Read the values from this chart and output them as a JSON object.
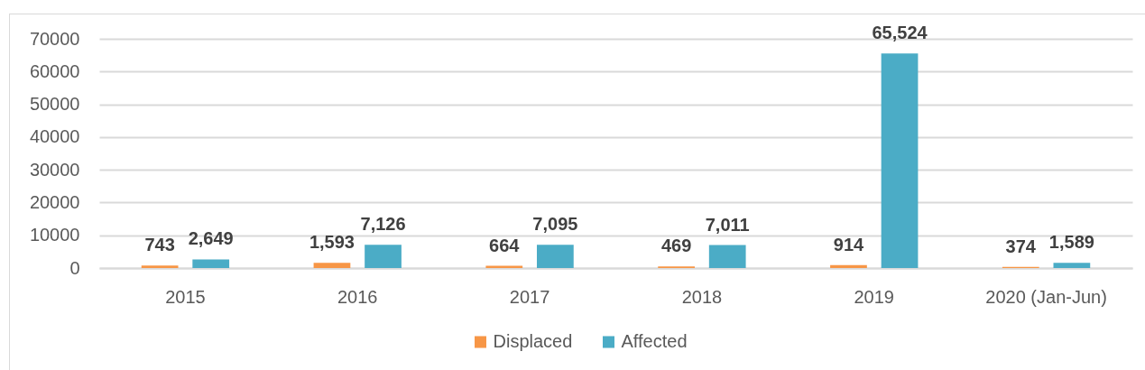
{
  "chart_data": {
    "type": "bar",
    "categories": [
      "2015",
      "2016",
      "2017",
      "2018",
      "2019",
      "2020 (Jan-Jun)"
    ],
    "series": [
      {
        "name": "Displaced",
        "color": "#f79646",
        "values": [
          743,
          1593,
          664,
          469,
          914,
          374
        ],
        "value_labels": [
          "743",
          "1,593",
          "664",
          "469",
          "914",
          "374"
        ]
      },
      {
        "name": "Affected",
        "color": "#4bacc6",
        "values": [
          2649,
          7126,
          7095,
          7011,
          65524,
          1589
        ],
        "value_labels": [
          "2,649",
          "7,126",
          "7,095",
          "7,011",
          "65,524",
          "1,589"
        ]
      }
    ],
    "ylim": [
      0,
      70000
    ],
    "yticks": [
      0,
      10000,
      20000,
      30000,
      40000,
      50000,
      60000,
      70000
    ],
    "grid": "y",
    "legend": "bottom"
  }
}
